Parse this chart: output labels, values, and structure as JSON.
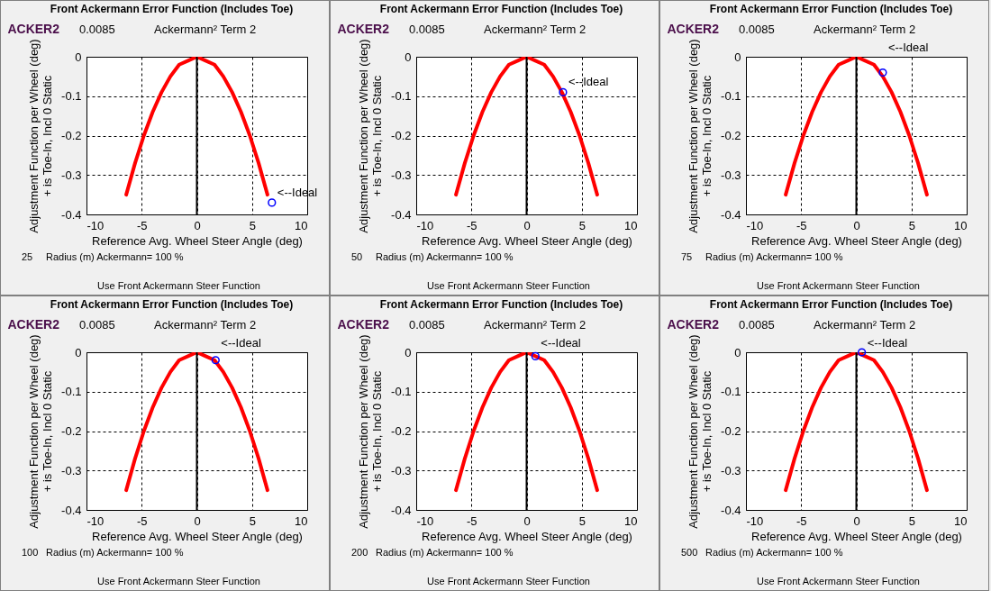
{
  "chart_data": [
    {
      "type": "line",
      "title": "Front Ackermann Error Function (Includes Toe)",
      "xlabel": "Reference Avg. Wheel Steer Angle (deg)",
      "ylabel": "Adjustment Function per Wheel (deg)\n+ is Toe-In, Incl 0 Static",
      "xlim": [
        -10,
        10
      ],
      "xticks": [
        -10,
        -5,
        0,
        5,
        10
      ],
      "ylim": [
        -0.4,
        0
      ],
      "yticks": [
        0,
        -0.1,
        -0.2,
        -0.3,
        -0.4
      ],
      "grid": true,
      "line_style": "solid",
      "ref_lines": [
        {
          "axis": "x",
          "value": 0,
          "color": "#000000"
        }
      ],
      "series": [
        {
          "color": "#ff0000",
          "x": [
            -6.4,
            -5.6,
            -4.8,
            -4,
            -3.2,
            -2.4,
            -1.6,
            -0.8,
            0,
            0.8,
            1.6,
            2.4,
            3.2,
            4,
            4.8,
            5.6,
            6.4
          ],
          "values": [
            -0.35,
            -0.27,
            -0.2,
            -0.14,
            -0.09,
            -0.05,
            -0.02,
            -0.01,
            0,
            -0.01,
            -0.02,
            -0.05,
            -0.09,
            -0.14,
            -0.2,
            -0.27,
            -0.35
          ]
        },
        {
          "type": "scatter",
          "marker": "circle",
          "color": "#0000ff",
          "x": [
            6.8
          ],
          "values": [
            -0.37
          ]
        }
      ],
      "annotations": [
        "ACKER2",
        "0.0085",
        "Ackermann² Term 2",
        "25",
        "Radius (m)  Ackermann= 100 %",
        "Use Front Ackermann Steer Function",
        {
          "text": "<--Ideal",
          "x": 6.8,
          "y": -0.37
        }
      ]
    },
    {
      "type": "line",
      "title": "Front Ackermann Error Function (Includes Toe)",
      "xlabel": "Reference Avg. Wheel Steer Angle (deg)",
      "ylabel": "Adjustment Function per Wheel (deg)\n+ is Toe-In, Incl 0 Static",
      "xlim": [
        -10,
        10
      ],
      "xticks": [
        -10,
        -5,
        0,
        5,
        10
      ],
      "ylim": [
        -0.4,
        0
      ],
      "yticks": [
        0,
        -0.1,
        -0.2,
        -0.3,
        -0.4
      ],
      "grid": true,
      "line_style": "solid",
      "ref_lines": [
        {
          "axis": "x",
          "value": 0,
          "color": "#000000"
        }
      ],
      "series": [
        {
          "color": "#ff0000",
          "x": [
            -6.4,
            -5.6,
            -4.8,
            -4,
            -3.2,
            -2.4,
            -1.6,
            -0.8,
            0,
            0.8,
            1.6,
            2.4,
            3.2,
            4,
            4.8,
            5.6,
            6.4
          ],
          "values": [
            -0.35,
            -0.27,
            -0.2,
            -0.14,
            -0.09,
            -0.05,
            -0.02,
            -0.01,
            0,
            -0.01,
            -0.02,
            -0.05,
            -0.09,
            -0.14,
            -0.2,
            -0.27,
            -0.35
          ]
        },
        {
          "type": "scatter",
          "marker": "circle",
          "color": "#0000ff",
          "x": [
            3.3
          ],
          "values": [
            -0.09
          ]
        }
      ],
      "annotations": [
        "ACKER2",
        "0.0085",
        "Ackermann² Term 2",
        "50",
        "Radius (m)  Ackermann= 100 %",
        "Use Front Ackermann Steer Function",
        {
          "text": "<--Ideal",
          "x": 3.3,
          "y": -0.09
        }
      ]
    },
    {
      "type": "line",
      "title": "Front Ackermann Error Function (Includes Toe)",
      "xlabel": "Reference Avg. Wheel Steer Angle (deg)",
      "ylabel": "Adjustment Function per Wheel (deg)\n+ is Toe-In, Incl 0 Static",
      "xlim": [
        -10,
        10
      ],
      "xticks": [
        -10,
        -5,
        0,
        5,
        10
      ],
      "ylim": [
        -0.4,
        0
      ],
      "yticks": [
        0,
        -0.1,
        -0.2,
        -0.3,
        -0.4
      ],
      "grid": true,
      "line_style": "solid",
      "ref_lines": [
        {
          "axis": "x",
          "value": 0,
          "color": "#000000"
        }
      ],
      "series": [
        {
          "color": "#ff0000",
          "x": [
            -6.4,
            -5.6,
            -4.8,
            -4,
            -3.2,
            -2.4,
            -1.6,
            -0.8,
            0,
            0.8,
            1.6,
            2.4,
            3.2,
            4,
            4.8,
            5.6,
            6.4
          ],
          "values": [
            -0.35,
            -0.27,
            -0.2,
            -0.14,
            -0.09,
            -0.05,
            -0.02,
            -0.01,
            0,
            -0.01,
            -0.02,
            -0.05,
            -0.09,
            -0.14,
            -0.2,
            -0.27,
            -0.35
          ]
        },
        {
          "type": "scatter",
          "marker": "circle",
          "color": "#0000ff",
          "x": [
            2.4
          ],
          "values": [
            -0.04
          ]
        }
      ],
      "annotations": [
        "ACKER2",
        "0.0085",
        "Ackermann² Term 2",
        "75",
        "Radius (m)  Ackermann= 100 %",
        "Use Front Ackermann Steer Function",
        {
          "text": "<--Ideal",
          "x": 2.4,
          "y": -0.04
        }
      ]
    },
    {
      "type": "line",
      "title": "Front Ackermann Error Function (Includes Toe)",
      "xlabel": "Reference Avg. Wheel Steer Angle (deg)",
      "ylabel": "Adjustment Function per Wheel (deg)\n+ is Toe-In, Incl 0 Static",
      "xlim": [
        -10,
        10
      ],
      "xticks": [
        -10,
        -5,
        0,
        5,
        10
      ],
      "ylim": [
        -0.4,
        0
      ],
      "yticks": [
        0,
        -0.1,
        -0.2,
        -0.3,
        -0.4
      ],
      "grid": true,
      "line_style": "solid",
      "ref_lines": [
        {
          "axis": "x",
          "value": 0,
          "color": "#000000"
        }
      ],
      "series": [
        {
          "color": "#ff0000",
          "x": [
            -6.4,
            -5.6,
            -4.8,
            -4,
            -3.2,
            -2.4,
            -1.6,
            -0.8,
            0,
            0.8,
            1.6,
            2.4,
            3.2,
            4,
            4.8,
            5.6,
            6.4
          ],
          "values": [
            -0.35,
            -0.27,
            -0.2,
            -0.14,
            -0.09,
            -0.05,
            -0.02,
            -0.01,
            0,
            -0.01,
            -0.02,
            -0.05,
            -0.09,
            -0.14,
            -0.2,
            -0.27,
            -0.35
          ]
        },
        {
          "type": "scatter",
          "marker": "circle",
          "color": "#0000ff",
          "x": [
            1.7
          ],
          "values": [
            -0.02
          ]
        }
      ],
      "annotations": [
        "ACKER2",
        "0.0085",
        "Ackermann² Term 2",
        "100",
        "Radius (m)  Ackermann= 100 %",
        "Use Front Ackermann Steer Function",
        {
          "text": "<--Ideal",
          "x": 1.7,
          "y": -0.02
        }
      ]
    },
    {
      "type": "line",
      "title": "Front Ackermann Error Function (Includes Toe)",
      "xlabel": "Reference Avg. Wheel Steer Angle (deg)",
      "ylabel": "Adjustment Function per Wheel (deg)\n+ is Toe-In, Incl 0 Static",
      "xlim": [
        -10,
        10
      ],
      "xticks": [
        -10,
        -5,
        0,
        5,
        10
      ],
      "ylim": [
        -0.4,
        0
      ],
      "yticks": [
        0,
        -0.1,
        -0.2,
        -0.3,
        -0.4
      ],
      "grid": true,
      "line_style": "solid",
      "ref_lines": [
        {
          "axis": "x",
          "value": 0,
          "color": "#000000"
        }
      ],
      "series": [
        {
          "color": "#ff0000",
          "x": [
            -6.4,
            -5.6,
            -4.8,
            -4,
            -3.2,
            -2.4,
            -1.6,
            -0.8,
            0,
            0.8,
            1.6,
            2.4,
            3.2,
            4,
            4.8,
            5.6,
            6.4
          ],
          "values": [
            -0.35,
            -0.27,
            -0.2,
            -0.14,
            -0.09,
            -0.05,
            -0.02,
            -0.01,
            0,
            -0.01,
            -0.02,
            -0.05,
            -0.09,
            -0.14,
            -0.2,
            -0.27,
            -0.35
          ]
        },
        {
          "type": "scatter",
          "marker": "circle",
          "color": "#0000ff",
          "x": [
            0.8
          ],
          "values": [
            -0.01
          ]
        }
      ],
      "annotations": [
        "ACKER2",
        "0.0085",
        "Ackermann² Term 2",
        "200",
        "Radius (m)  Ackermann= 100 %",
        "Use Front Ackermann Steer Function",
        {
          "text": "<--Ideal",
          "x": 0.8,
          "y": -0.01
        }
      ]
    },
    {
      "type": "line",
      "title": "Front Ackermann Error Function (Includes Toe)",
      "xlabel": "Reference Avg. Wheel Steer Angle (deg)",
      "ylabel": "Adjustment Function per Wheel (deg)\n+ is Toe-In, Incl 0 Static",
      "xlim": [
        -10,
        10
      ],
      "xticks": [
        -10,
        -5,
        0,
        5,
        10
      ],
      "ylim": [
        -0.4,
        0
      ],
      "yticks": [
        0,
        -0.1,
        -0.2,
        -0.3,
        -0.4
      ],
      "grid": true,
      "line_style": "solid",
      "ref_lines": [
        {
          "axis": "x",
          "value": 0,
          "color": "#000000"
        }
      ],
      "series": [
        {
          "color": "#ff0000",
          "x": [
            -6.4,
            -5.6,
            -4.8,
            -4,
            -3.2,
            -2.4,
            -1.6,
            -0.8,
            0,
            0.8,
            1.6,
            2.4,
            3.2,
            4,
            4.8,
            5.6,
            6.4
          ],
          "values": [
            -0.35,
            -0.27,
            -0.2,
            -0.14,
            -0.09,
            -0.05,
            -0.02,
            -0.01,
            0,
            -0.01,
            -0.02,
            -0.05,
            -0.09,
            -0.14,
            -0.2,
            -0.27,
            -0.35
          ]
        },
        {
          "type": "scatter",
          "marker": "circle",
          "color": "#0000ff",
          "x": [
            0.5
          ],
          "values": [
            0
          ]
        }
      ],
      "annotations": [
        "ACKER2",
        "0.0085",
        "Ackermann² Term 2",
        "500",
        "Radius (m)  Ackermann= 100 %",
        "Use Front Ackermann Steer Function",
        {
          "text": "<--Ideal",
          "x": 0.5,
          "y": 0
        }
      ]
    }
  ]
}
